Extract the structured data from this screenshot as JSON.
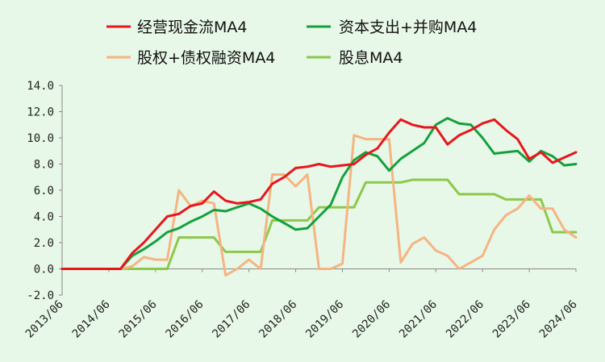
{
  "chart_data": {
    "type": "line",
    "title": "",
    "xlabel": "",
    "ylabel": "",
    "ylim": [
      -2.0,
      14.0
    ],
    "y_ticks": [
      "-2.0",
      "0.0",
      "2.0",
      "4.0",
      "6.0",
      "8.0",
      "10.0",
      "12.0",
      "14.0"
    ],
    "y_tick_values": [
      -2,
      0,
      2,
      4,
      6,
      8,
      10,
      12,
      14
    ],
    "x_tick_labels": [
      "2013/06",
      "2014/06",
      "2015/06",
      "2016/06",
      "2017/06",
      "2018/06",
      "2019/06",
      "2020/06",
      "2021/06",
      "2022/06",
      "2023/06",
      "2024/06"
    ],
    "grid": false,
    "legend_position": "top",
    "x": [
      "2013/06",
      "2013/09",
      "2013/12",
      "2014/03",
      "2014/06",
      "2014/09",
      "2014/12",
      "2015/03",
      "2015/06",
      "2015/09",
      "2015/12",
      "2016/03",
      "2016/06",
      "2016/09",
      "2016/12",
      "2017/03",
      "2017/06",
      "2017/09",
      "2017/12",
      "2018/03",
      "2018/06",
      "2018/09",
      "2018/12",
      "2019/03",
      "2019/06",
      "2019/09",
      "2019/12",
      "2020/03",
      "2020/06",
      "2020/09",
      "2020/12",
      "2021/03",
      "2021/06",
      "2021/09",
      "2021/12",
      "2022/03",
      "2022/06",
      "2022/09",
      "2022/12",
      "2023/03",
      "2023/06",
      "2023/09",
      "2023/12",
      "2024/03",
      "2024/06"
    ],
    "series": [
      {
        "name": "经营现金流MA4",
        "color": "#e8161c",
        "values": [
          0,
          0,
          0,
          0,
          0,
          0,
          1.2,
          2.0,
          3.0,
          4.0,
          4.2,
          4.8,
          5.0,
          5.9,
          5.2,
          5.0,
          5.1,
          5.3,
          6.5,
          7.0,
          7.7,
          7.8,
          8.0,
          7.8,
          7.9,
          8.0,
          8.7,
          9.2,
          10.4,
          11.4,
          11.0,
          10.8,
          10.8,
          9.5,
          10.2,
          10.6,
          11.1,
          11.4,
          10.6,
          9.9,
          8.4,
          8.9,
          8.1,
          8.5,
          8.9
        ]
      },
      {
        "name": "资本支出+并购MA4",
        "color": "#14a03c",
        "values": [
          0,
          0,
          0,
          0,
          0,
          0,
          1.0,
          1.5,
          2.1,
          2.8,
          3.1,
          3.6,
          4.0,
          4.5,
          4.4,
          4.7,
          5.0,
          4.6,
          4.0,
          3.5,
          3.0,
          3.1,
          4.0,
          4.9,
          7.0,
          8.3,
          8.9,
          8.6,
          7.5,
          8.4,
          9.0,
          9.6,
          11.0,
          11.5,
          11.1,
          11.0,
          10.0,
          8.8,
          8.9,
          9.0,
          8.2,
          9.0,
          8.6,
          7.9,
          8.0
        ]
      },
      {
        "name": "股权+债权融资MA4",
        "color": "#f5b482",
        "values": [
          0,
          0,
          0,
          0,
          0,
          0,
          0.2,
          0.9,
          0.7,
          0.7,
          6.0,
          4.8,
          5.2,
          5.0,
          -0.5,
          0,
          0.7,
          0,
          7.2,
          7.2,
          6.3,
          7.2,
          0,
          0,
          0.4,
          10.2,
          9.9,
          9.9,
          9.9,
          0.5,
          1.9,
          2.4,
          1.4,
          1.0,
          0.0,
          0.5,
          1.0,
          3.0,
          4.1,
          4.6,
          5.6,
          4.6,
          4.6,
          3.0,
          2.4
        ]
      },
      {
        "name": "股息MA4",
        "color": "#8cc84b",
        "values": [
          0,
          0,
          0,
          0,
          0,
          0,
          0,
          0,
          0,
          0,
          2.4,
          2.4,
          2.4,
          2.4,
          1.3,
          1.3,
          1.3,
          1.3,
          3.7,
          3.7,
          3.7,
          3.7,
          4.7,
          4.7,
          4.7,
          4.7,
          6.6,
          6.6,
          6.6,
          6.6,
          6.8,
          6.8,
          6.8,
          6.8,
          5.7,
          5.7,
          5.7,
          5.7,
          5.3,
          5.3,
          5.3,
          5.3,
          2.8,
          2.8,
          2.8
        ]
      }
    ]
  }
}
